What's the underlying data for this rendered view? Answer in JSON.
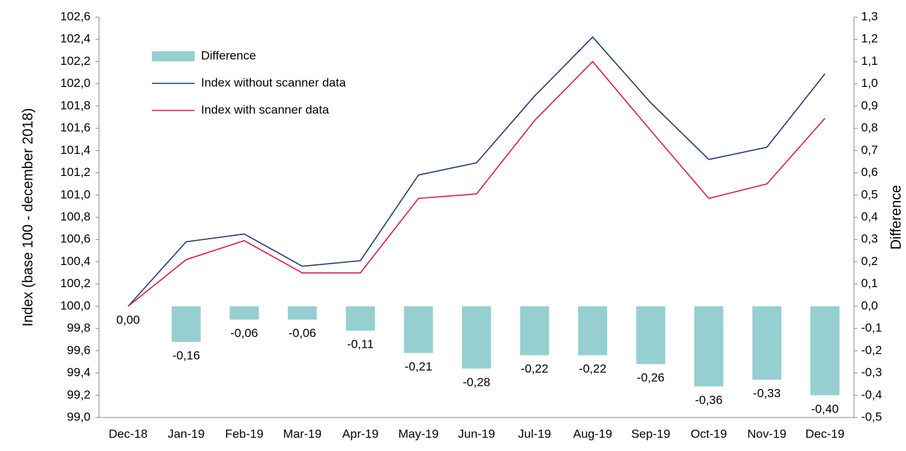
{
  "chart_data": {
    "type": "combo",
    "ylabel": "Index (base 100 - december 2018)",
    "y2label": "Difference",
    "categories": [
      "Dec-18",
      "Jan-19",
      "Feb-19",
      "Mar-19",
      "Apr-19",
      "May-19",
      "Jun-19",
      "Jul-19",
      "Aug-19",
      "Sep-19",
      "Oct-19",
      "Nov-19",
      "Dec-19"
    ],
    "series": [
      {
        "name": "Difference",
        "type": "bar",
        "axis": "y2",
        "color": "#96cfcf",
        "values": [
          0.0,
          -0.16,
          -0.06,
          -0.06,
          -0.11,
          -0.21,
          -0.28,
          -0.22,
          -0.22,
          -0.26,
          -0.36,
          -0.33,
          -0.4
        ],
        "value_labels": [
          "0,00",
          "-0,16",
          "-0,06",
          "-0,06",
          "-0,11",
          "-0,21",
          "-0,28",
          "-0,22",
          "-0,22",
          "-0,26",
          "-0,36",
          "-0,33",
          "-0,40"
        ]
      },
      {
        "name": "Index without scanner data",
        "type": "line",
        "color": "#1f3b73",
        "values": [
          100.0,
          100.58,
          100.65,
          100.36,
          100.41,
          101.18,
          101.29,
          101.89,
          102.42,
          101.83,
          101.32,
          101.43,
          102.09
        ]
      },
      {
        "name": "Index with scanner data",
        "type": "line",
        "color": "#e0174a",
        "values": [
          100.0,
          100.42,
          100.59,
          100.3,
          100.3,
          100.97,
          101.01,
          101.67,
          102.2,
          101.58,
          100.97,
          101.1,
          101.69
        ]
      }
    ],
    "ylim": [
      99.0,
      102.6
    ],
    "yticks": [
      {
        "value": 99.0,
        "label": "99,0"
      },
      {
        "value": 99.2,
        "label": "99,2"
      },
      {
        "value": 99.4,
        "label": "99,4"
      },
      {
        "value": 99.6,
        "label": "99,6"
      },
      {
        "value": 99.8,
        "label": "99,8"
      },
      {
        "value": 100.0,
        "label": "100,0"
      },
      {
        "value": 100.2,
        "label": "100,2"
      },
      {
        "value": 100.4,
        "label": "100,4"
      },
      {
        "value": 100.6,
        "label": "100,6"
      },
      {
        "value": 100.8,
        "label": "100,8"
      },
      {
        "value": 101.0,
        "label": "101,0"
      },
      {
        "value": 101.2,
        "label": "101,2"
      },
      {
        "value": 101.4,
        "label": "101,4"
      },
      {
        "value": 101.6,
        "label": "101,6"
      },
      {
        "value": 101.8,
        "label": "101,8"
      },
      {
        "value": 102.0,
        "label": "102,0"
      },
      {
        "value": 102.2,
        "label": "102,2"
      },
      {
        "value": 102.4,
        "label": "102,4"
      },
      {
        "value": 102.6,
        "label": "102,6"
      }
    ],
    "y2lim": [
      -0.5,
      1.3
    ],
    "y2ticks": [
      {
        "value": -0.5,
        "label": "-0,5"
      },
      {
        "value": -0.4,
        "label": "-0,4"
      },
      {
        "value": -0.3,
        "label": "-0,3"
      },
      {
        "value": -0.2,
        "label": "-0,2"
      },
      {
        "value": -0.1,
        "label": "-0,1"
      },
      {
        "value": 0,
        "label": "0,0"
      },
      {
        "value": 0.1,
        "label": "0,1"
      },
      {
        "value": 0.2,
        "label": "0,2"
      },
      {
        "value": 0.3,
        "label": "0,3"
      },
      {
        "value": 0.4,
        "label": "0,4"
      },
      {
        "value": 0.5,
        "label": "0,5"
      },
      {
        "value": 0.6,
        "label": "0,6"
      },
      {
        "value": 0.7,
        "label": "0,7"
      },
      {
        "value": 0.8,
        "label": "0,8"
      },
      {
        "value": 0.9,
        "label": "0,9"
      },
      {
        "value": 1.0,
        "label": "1,0"
      },
      {
        "value": 1.1,
        "label": "1,1"
      },
      {
        "value": 1.2,
        "label": "1,2"
      },
      {
        "value": 1.3,
        "label": "1,3"
      }
    ],
    "legend": "upper-left"
  }
}
